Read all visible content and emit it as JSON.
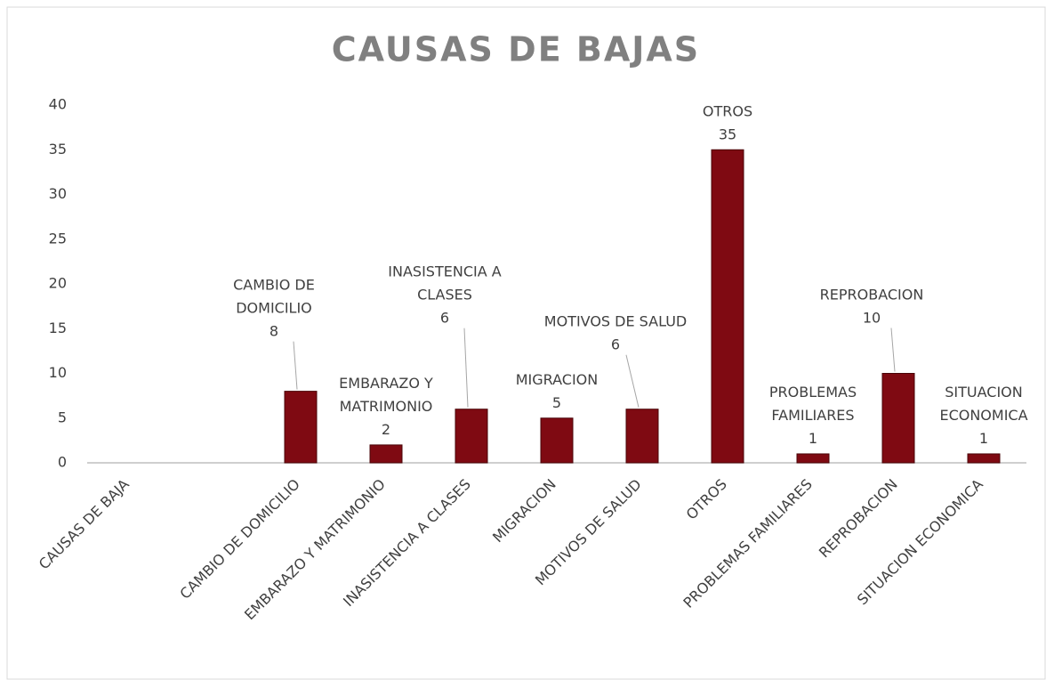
{
  "chart_data": {
    "type": "bar",
    "title": "CAUSAS DE BAJAS",
    "categories": [
      "CAUSAS DE BAJA",
      null,
      "CAMBIO DE DOMICILIO",
      "EMBARAZO Y MATRIMONIO",
      "INASISTENCIA A CLASES",
      "MIGRACION",
      "MOTIVOS DE SALUD",
      "OTROS",
      "PROBLEMAS FAMILIARES",
      "REPROBACION",
      "SITUACION ECONOMICA"
    ],
    "values": [
      null,
      null,
      8,
      2,
      6,
      5,
      6,
      35,
      1,
      10,
      1
    ],
    "color": "#7f0a12",
    "ylim": [
      0,
      40
    ],
    "yticks": [
      0,
      5,
      10,
      15,
      20,
      25,
      30,
      35,
      40
    ],
    "grid": false
  }
}
